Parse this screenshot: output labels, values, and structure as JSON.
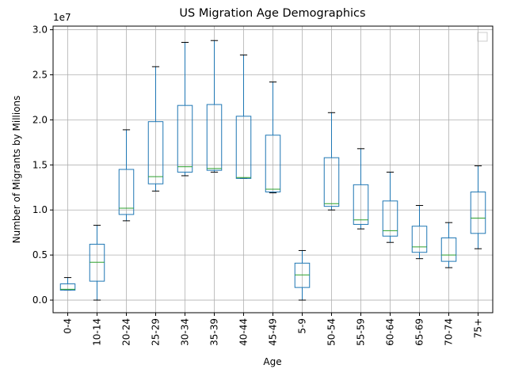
{
  "chart_data": {
    "type": "box",
    "title": "US Migration Age Demographics",
    "x_label": "Age",
    "y_label": "Number of Migrants by Millions",
    "y_offset_label": "1e7",
    "categories": [
      "0-4",
      "10-14",
      "20-24",
      "25-29",
      "30-34",
      "35-39",
      "40-44",
      "45-49",
      "5-9",
      "50-54",
      "55-59",
      "60-64",
      "65-69",
      "70-74",
      "75+"
    ],
    "boxes": [
      {
        "whislo": 0.11,
        "q1": 0.11,
        "med": 0.12,
        "q3": 0.18,
        "whishi": 0.25
      },
      {
        "whislo": 0,
        "q1": 0.21,
        "med": 0.42,
        "q3": 0.62,
        "whishi": 0.83
      },
      {
        "whislo": 0.88,
        "q1": 0.95,
        "med": 1.02,
        "q3": 1.45,
        "whishi": 1.89
      },
      {
        "whislo": 1.21,
        "q1": 1.29,
        "med": 1.37,
        "q3": 1.98,
        "whishi": 2.59
      },
      {
        "whislo": 1.38,
        "q1": 1.42,
        "med": 1.48,
        "q3": 2.16,
        "whishi": 2.86
      },
      {
        "whislo": 1.42,
        "q1": 1.44,
        "med": 1.46,
        "q3": 2.17,
        "whishi": 2.88
      },
      {
        "whislo": 1.35,
        "q1": 1.35,
        "med": 1.36,
        "q3": 2.04,
        "whishi": 2.72
      },
      {
        "whislo": 1.19,
        "q1": 1.2,
        "med": 1.23,
        "q3": 1.83,
        "whishi": 2.42
      },
      {
        "whislo": 0,
        "q1": 0.14,
        "med": 0.28,
        "q3": 0.41,
        "whishi": 0.55
      },
      {
        "whislo": 1.0,
        "q1": 1.04,
        "med": 1.07,
        "q3": 1.58,
        "whishi": 2.08
      },
      {
        "whislo": 0.79,
        "q1": 0.84,
        "med": 0.89,
        "q3": 1.28,
        "whishi": 1.68
      },
      {
        "whislo": 0.64,
        "q1": 0.71,
        "med": 0.77,
        "q3": 1.1,
        "whishi": 1.42
      },
      {
        "whislo": 0.46,
        "q1": 0.53,
        "med": 0.59,
        "q3": 0.82,
        "whishi": 1.05
      },
      {
        "whislo": 0.36,
        "q1": 0.43,
        "med": 0.5,
        "q3": 0.69,
        "whishi": 0.86
      },
      {
        "whislo": 0.57,
        "q1": 0.74,
        "med": 0.91,
        "q3": 1.2,
        "whishi": 1.49
      }
    ],
    "color": "#1f77b4",
    "median_color": "#2ca02c",
    "ylim": [
      -0.14,
      3.04
    ],
    "yticks": [
      {
        "value": 0,
        "label": "0.0"
      },
      0.5,
      {
        "value": 1,
        "label": "1.0"
      },
      1.5,
      {
        "value": 2,
        "label": "2.0"
      },
      2.5,
      {
        "value": 3,
        "label": "3.0"
      }
    ],
    "grid": true
  }
}
